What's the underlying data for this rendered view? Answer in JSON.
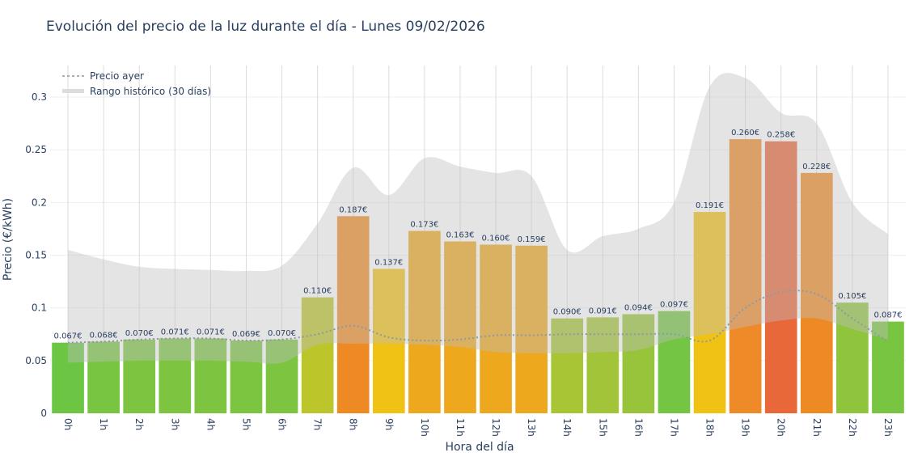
{
  "chart_data": {
    "type": "bar",
    "title": "Evolución del precio de la luz durante el día - Lunes 09/02/2026",
    "xlabel": "Hora del día",
    "ylabel": "Precio (€/kWh)",
    "ylim": [
      0,
      0.33
    ],
    "yticks": [
      0,
      0.05,
      0.1,
      0.15,
      0.2,
      0.25,
      0.3
    ],
    "ytick_labels": [
      "0",
      "0.05",
      "0.1",
      "0.15",
      "0.2",
      "0.25",
      "0.3"
    ],
    "grid": true,
    "legend_position": "top-left",
    "categories": [
      "0h",
      "1h",
      "2h",
      "3h",
      "4h",
      "5h",
      "6h",
      "7h",
      "8h",
      "9h",
      "10h",
      "11h",
      "12h",
      "13h",
      "14h",
      "15h",
      "16h",
      "17h",
      "18h",
      "19h",
      "20h",
      "21h",
      "22h",
      "23h"
    ],
    "values": [
      0.067,
      0.068,
      0.07,
      0.071,
      0.071,
      0.069,
      0.07,
      0.11,
      0.187,
      0.137,
      0.173,
      0.163,
      0.16,
      0.159,
      0.09,
      0.091,
      0.094,
      0.097,
      0.191,
      0.26,
      0.258,
      0.228,
      0.105,
      0.087
    ],
    "data_labels": [
      "0.067€",
      "0.068€",
      "0.070€",
      "0.071€",
      "0.071€",
      "0.069€",
      "0.070€",
      "0.110€",
      "0.187€",
      "0.137€",
      "0.173€",
      "0.163€",
      "0.160€",
      "0.159€",
      "0.090€",
      "0.091€",
      "0.094€",
      "0.097€",
      "0.191€",
      "0.260€",
      "0.258€",
      "0.228€",
      "0.105€",
      "0.087€"
    ],
    "bar_colors": [
      "#6cc644",
      "#78c541",
      "#7dc540",
      "#7dc540",
      "#7dc540",
      "#7bc541",
      "#7dc540",
      "#bcc52a",
      "#ee8a24",
      "#f0c214",
      "#eea81e",
      "#eea81e",
      "#eea81e",
      "#eea81e",
      "#a8c535",
      "#a2c438",
      "#98c43c",
      "#74c543",
      "#f0c214",
      "#ee8a28",
      "#e8683a",
      "#ee8a24",
      "#8fc43d",
      "#78c541"
    ],
    "series": [
      {
        "name": "Precio ayer",
        "type": "line",
        "style": "dotted",
        "color": "#8c99a6",
        "values": [
          0.067,
          0.068,
          0.07,
          0.071,
          0.071,
          0.069,
          0.07,
          0.075,
          0.083,
          0.072,
          0.069,
          0.07,
          0.074,
          0.074,
          0.075,
          0.075,
          0.075,
          0.075,
          0.069,
          0.1,
          0.115,
          0.113,
          0.09,
          0.068
        ]
      },
      {
        "name": "Rango histórico (30 días)",
        "type": "area-band",
        "color": "#d3d3d3",
        "upper": [
          0.155,
          0.146,
          0.139,
          0.137,
          0.136,
          0.135,
          0.14,
          0.18,
          0.233,
          0.207,
          0.242,
          0.234,
          0.228,
          0.225,
          0.155,
          0.168,
          0.175,
          0.2,
          0.31,
          0.318,
          0.285,
          0.275,
          0.2,
          0.17
        ],
        "lower": [
          0.048,
          0.049,
          0.05,
          0.05,
          0.05,
          0.049,
          0.048,
          0.065,
          0.066,
          0.066,
          0.065,
          0.063,
          0.058,
          0.057,
          0.057,
          0.058,
          0.06,
          0.07,
          0.075,
          0.082,
          0.088,
          0.09,
          0.08,
          0.07
        ]
      }
    ]
  }
}
